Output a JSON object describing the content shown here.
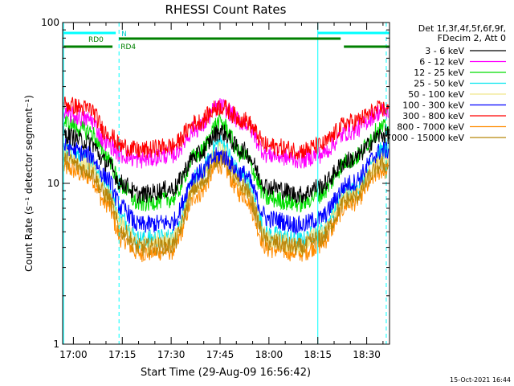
{
  "chart_data": {
    "type": "line",
    "title": "RHESSI Count Rates",
    "xlabel": "Start Time (29-Aug-09 16:56:42)",
    "ylabel": "Count Rate (s⁻¹ detector segment⁻¹)",
    "y_scale": "log",
    "ylim": [
      1,
      100
    ],
    "xlim": [
      "16:56:42",
      "18:37:00"
    ],
    "x_ticks": [
      "17:00",
      "17:15",
      "17:30",
      "17:45",
      "18:00",
      "18:15",
      "18:30"
    ],
    "y_ticks": [
      "1",
      "10",
      "100"
    ],
    "legend_header": [
      "Det 1f,3f,4f,5f,6f,9f,",
      "FDecim 2, Att 0"
    ],
    "legend_position": "right",
    "footer_date": "15-Oct-2021 16:44",
    "x": [
      "16:57",
      "17:05",
      "17:10",
      "17:15",
      "17:20",
      "17:30",
      "17:38",
      "17:45",
      "17:52",
      "18:00",
      "18:10",
      "18:15",
      "18:25",
      "18:35"
    ],
    "series": [
      {
        "name": "3 - 6 keV",
        "color": "#000000",
        "values": [
          20,
          18,
          13.5,
          10,
          8.5,
          9.2,
          15,
          21,
          16,
          9.5,
          8.5,
          9.5,
          14,
          20
        ]
      },
      {
        "name": "6 - 12 keV",
        "color": "#ff00ff",
        "values": [
          27,
          25,
          18,
          15,
          14,
          15,
          22,
          30,
          24,
          15,
          14,
          15,
          21,
          28
        ]
      },
      {
        "name": "12 - 25 keV",
        "color": "#00dd00",
        "values": [
          24,
          21,
          15,
          9.5,
          7.5,
          8,
          15,
          24,
          15,
          8,
          7.5,
          8.5,
          14,
          22
        ]
      },
      {
        "name": "25 - 50 keV",
        "color": "#00e5ee",
        "values": [
          16,
          14,
          10,
          6,
          4.5,
          4.6,
          11,
          18,
          11,
          4.8,
          4.4,
          5,
          9,
          16
        ]
      },
      {
        "name": "50 - 100 keV",
        "color": "#f0e68c",
        "values": [
          15,
          13,
          9,
          5.5,
          4.2,
          4.4,
          10,
          16,
          10,
          4.5,
          4.1,
          4.8,
          8.5,
          14
        ]
      },
      {
        "name": "100 - 300 keV",
        "color": "#0000ff",
        "values": [
          17,
          15,
          11,
          7,
          5.5,
          5.7,
          11.5,
          15,
          11.5,
          6,
          5.5,
          6,
          10,
          16
        ]
      },
      {
        "name": "300 - 800 keV",
        "color": "#ff0000",
        "values": [
          31,
          29,
          21,
          17,
          16,
          17,
          24,
          30,
          25,
          17,
          16,
          17,
          24,
          29
        ]
      },
      {
        "name": "800 - 7000 keV",
        "color": "#ff8c00",
        "values": [
          12.5,
          11,
          7.5,
          4.5,
          3.7,
          3.8,
          8.5,
          13,
          8.5,
          3.9,
          3.7,
          4.1,
          7.5,
          12
        ]
      },
      {
        "name": "7000 - 15000 keV",
        "color": "#b8860b",
        "values": [
          14,
          12,
          8.5,
          5,
          4,
          4.1,
          9.5,
          14.5,
          9.5,
          4.3,
          4,
          4.5,
          8,
          13
        ]
      }
    ],
    "legend_order": [
      "3 - 6 keV",
      "6 - 12 keV",
      "12 - 25 keV",
      "25 - 50 keV",
      "50 - 100 keV",
      "100 - 300 keV",
      "300 - 800 keV",
      "800 - 7000 keV",
      "7000 - 15000 keV"
    ],
    "attenuator_bars": [
      {
        "label": "RD0",
        "color": "#008000",
        "x_start": "17:14",
        "x_end": "18:22"
      },
      {
        "label": "RD4",
        "color": "#008000",
        "x_start": "16:57",
        "x_end": "17:12"
      },
      {
        "label": "RD4",
        "color": "#008000",
        "x_start": "18:23",
        "x_end": "18:37"
      }
    ],
    "night_bars": [
      {
        "label": "N",
        "color": "#00ffff",
        "x_start": "16:57",
        "x_end": "17:13"
      },
      {
        "label": "N",
        "color": "#00ffff",
        "x_start": "18:15",
        "x_end": "18:37"
      }
    ],
    "night_markers": [
      {
        "style": "solid",
        "time": "16:57"
      },
      {
        "style": "dashed",
        "time": "17:14"
      },
      {
        "style": "solid",
        "time": "18:15"
      },
      {
        "style": "dashed",
        "time": "18:36"
      }
    ]
  }
}
